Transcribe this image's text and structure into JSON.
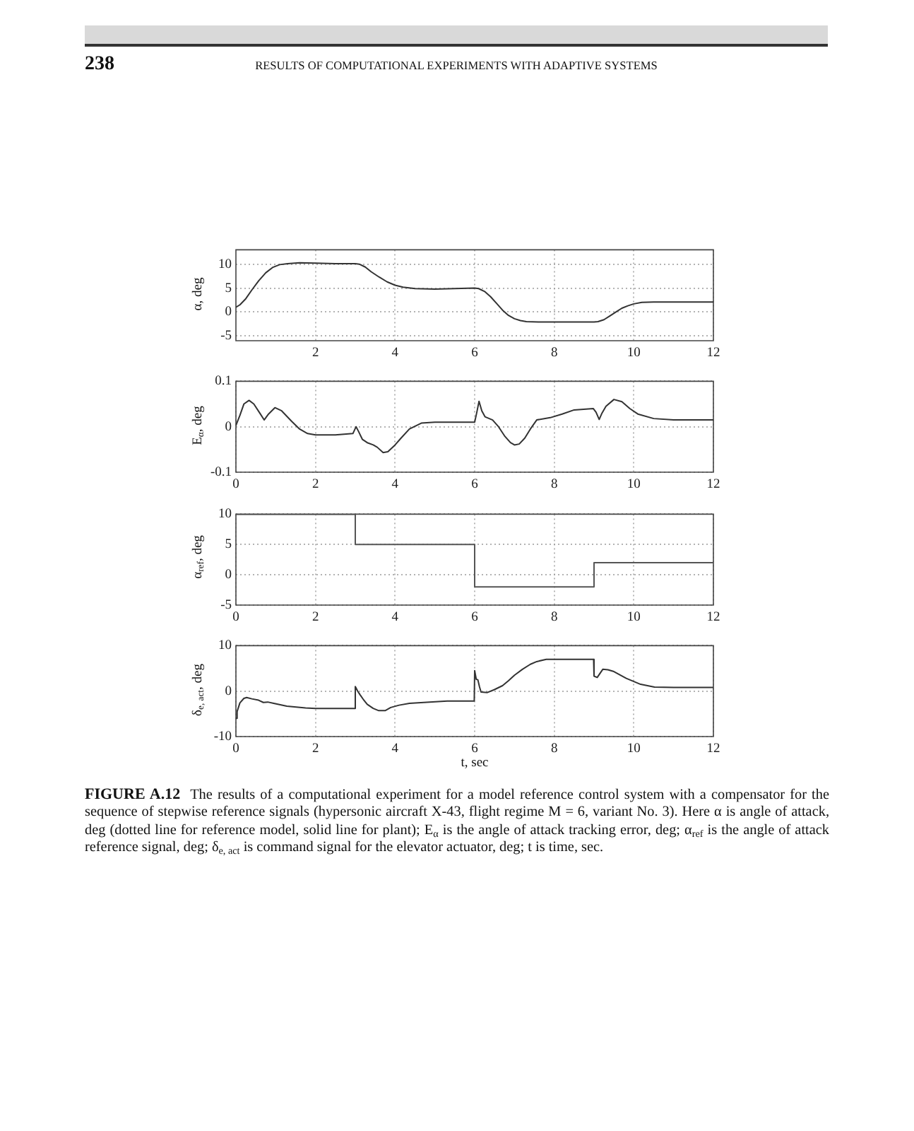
{
  "chart_data": [
    {
      "type": "line",
      "ylabel": "α, deg",
      "annotations": [
        "238",
        "RESULTS OF COMPUTATIONAL EXPERIMENTS WITH ADAPTIVE SYSTEMS"
      ],
      "xlim": [
        0,
        12
      ],
      "xticks": [
        2,
        4,
        6,
        8,
        10,
        12
      ],
      "ylim": [
        -6,
        13
      ],
      "yticks": [
        -5,
        0,
        5,
        10
      ],
      "grid": true,
      "color": "#333333",
      "x": [
        0,
        0.1,
        0.25,
        0.4,
        0.57,
        0.75,
        0.92,
        1.1,
        1.3,
        1.6,
        2.0,
        2.5,
        3.0,
        3.1,
        3.25,
        3.4,
        3.6,
        3.8,
        4.0,
        4.2,
        4.5,
        5.0,
        5.5,
        6.0,
        6.1,
        6.25,
        6.4,
        6.55,
        6.7,
        6.85,
        7.0,
        7.15,
        7.3,
        7.6,
        8.0,
        8.5,
        9.0,
        9.1,
        9.25,
        9.4,
        9.55,
        9.7,
        9.85,
        10.0,
        10.2,
        10.5,
        11.0,
        11.5,
        12
      ],
      "values": [
        1.0,
        1.5,
        2.8,
        4.6,
        6.5,
        8.2,
        9.3,
        9.9,
        10.1,
        10.3,
        10.2,
        10.1,
        10.1,
        10.0,
        9.4,
        8.4,
        7.3,
        6.3,
        5.6,
        5.2,
        4.9,
        4.8,
        4.9,
        5.0,
        4.9,
        4.3,
        3.2,
        1.8,
        0.4,
        -0.7,
        -1.4,
        -1.8,
        -2.0,
        -2.1,
        -2.1,
        -2.1,
        -2.1,
        -2.0,
        -1.6,
        -0.8,
        0.0,
        0.8,
        1.3,
        1.7,
        2.0,
        2.1,
        2.1,
        2.1,
        2.1
      ]
    },
    {
      "type": "line",
      "ylabel": "E$_{α}$, deg",
      "xlim": [
        0,
        12
      ],
      "xticks": [
        0,
        2,
        4,
        6,
        8,
        10,
        12
      ],
      "ylim": [
        -0.1,
        0.1
      ],
      "yticks": [
        -0.1,
        0,
        0.1
      ],
      "grid": true,
      "color": "#333333",
      "x": [
        0,
        0.1,
        0.2,
        0.33,
        0.45,
        0.6,
        0.71,
        0.82,
        0.98,
        1.15,
        1.4,
        1.6,
        1.8,
        2.0,
        2.5,
        2.94,
        3.02,
        3.08,
        3.18,
        3.3,
        3.45,
        3.55,
        3.7,
        3.82,
        4.0,
        4.15,
        4.36,
        4.66,
        5.0,
        5.5,
        6.0,
        6.05,
        6.11,
        6.18,
        6.26,
        6.45,
        6.6,
        6.75,
        6.9,
        7.0,
        7.12,
        7.26,
        7.4,
        7.56,
        7.9,
        8.2,
        8.5,
        8.98,
        9.05,
        9.13,
        9.2,
        9.3,
        9.5,
        9.7,
        9.9,
        10.1,
        10.5,
        11.0,
        12
      ],
      "values": [
        0.003,
        0.025,
        0.05,
        0.058,
        0.05,
        0.03,
        0.015,
        0.028,
        0.042,
        0.035,
        0.012,
        -0.005,
        -0.015,
        -0.018,
        -0.018,
        -0.015,
        0.0,
        -0.01,
        -0.028,
        -0.035,
        -0.04,
        -0.045,
        -0.057,
        -0.055,
        -0.04,
        -0.025,
        -0.005,
        0.008,
        0.01,
        0.01,
        0.01,
        0.03,
        0.056,
        0.035,
        0.022,
        0.015,
        0.0,
        -0.02,
        -0.035,
        -0.04,
        -0.038,
        -0.025,
        -0.005,
        0.015,
        0.02,
        0.028,
        0.037,
        0.04,
        0.032,
        0.016,
        0.03,
        0.045,
        0.06,
        0.055,
        0.04,
        0.028,
        0.018,
        0.015,
        0.015
      ]
    },
    {
      "type": "step",
      "ylabel": "α$_{ref}$, deg",
      "xlim": [
        0,
        12
      ],
      "xticks": [
        0,
        2,
        4,
        6,
        8,
        10,
        12
      ],
      "ylim": [
        -5,
        10
      ],
      "yticks": [
        -5,
        0,
        5,
        10
      ],
      "grid": true,
      "color": "#555555",
      "x": [
        0,
        3,
        6,
        9,
        12
      ],
      "values": [
        10,
        5,
        -2,
        2,
        2
      ]
    },
    {
      "type": "line",
      "ylabel": "δ$_{e, act}$, deg",
      "xlabel": "t, sec",
      "annotations": [
        "FIGURE A.12",
        "The results of a computational experiment for a model reference control system with a compensator for the sequence of stepwise reference signals (hypersonic aircraft X-43, flight regime M = 6, variant No. 3). Here α is angle of attack, deg (dotted line for reference model, solid line for plant); E$_{α}$ is the angle of attack tracking error, deg; α$_{ref}$ is the angle of attack reference signal, deg; δ$_{e, act}$ is command signal for the elevator actuator, deg; t is time, sec."
      ],
      "xlim": [
        0,
        12
      ],
      "xticks": [
        0,
        2,
        4,
        6,
        8,
        10,
        12
      ],
      "ylim": [
        -10,
        10
      ],
      "yticks": [
        -10,
        0,
        10
      ],
      "grid": true,
      "color": "#333333",
      "x": [
        0,
        0.03,
        0.1,
        0.2,
        0.27,
        0.4,
        0.57,
        0.69,
        0.8,
        0.95,
        1.28,
        1.75,
        2.0,
        2.5,
        2.99,
        3.0,
        3.06,
        3.12,
        3.2,
        3.3,
        3.45,
        3.59,
        3.75,
        3.89,
        4.1,
        4.36,
        4.72,
        5.31,
        5.99,
        6.0,
        6.04,
        6.08,
        6.12,
        6.16,
        6.32,
        6.49,
        6.7,
        6.85,
        7.0,
        7.2,
        7.4,
        7.56,
        7.8,
        8.5,
        8.99,
        9.0,
        9.08,
        9.15,
        9.22,
        9.35,
        9.5,
        9.81,
        10.17,
        10.52,
        11.0,
        12
      ],
      "values": [
        -6.0,
        -4.5,
        -2.6,
        -1.6,
        -1.4,
        -1.7,
        -2.0,
        -2.5,
        -2.4,
        -2.7,
        -3.3,
        -3.7,
        -3.8,
        -3.8,
        -3.8,
        1.0,
        0.0,
        -0.8,
        -1.8,
        -2.9,
        -3.8,
        -4.3,
        -4.3,
        -3.6,
        -3.1,
        -2.7,
        -2.5,
        -2.2,
        -2.2,
        4.5,
        2.6,
        2.5,
        1.0,
        -0.2,
        -0.3,
        0.3,
        1.2,
        2.3,
        3.5,
        4.8,
        5.9,
        6.5,
        7.0,
        7.0,
        7.0,
        3.3,
        3.0,
        3.9,
        4.8,
        4.7,
        4.3,
        2.8,
        1.5,
        0.9,
        0.8,
        0.8
      ]
    }
  ]
}
